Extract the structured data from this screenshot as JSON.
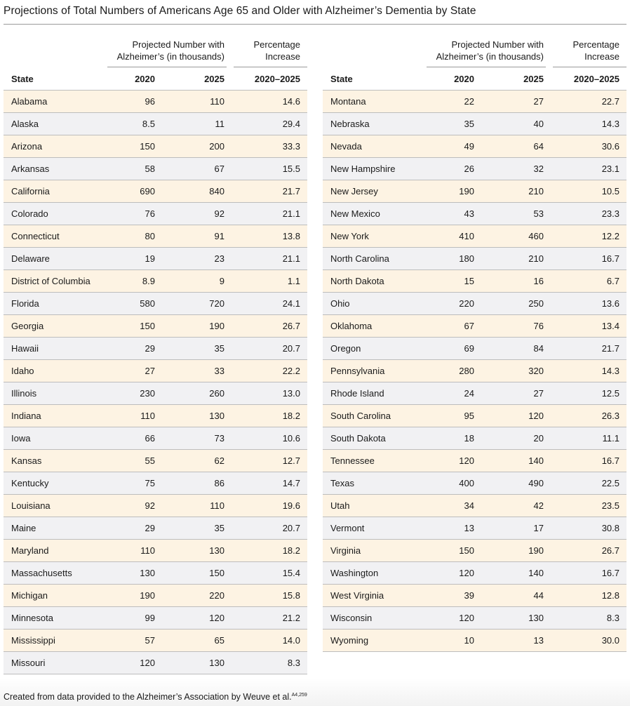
{
  "title": "Projections of Total Numbers of Americans Age 65 and Older with Alzheimer’s Dementia by State",
  "headers": {
    "projected_line1": "Projected Number with",
    "projected_line2": "Alzheimer’s (in thousands)",
    "percentage_line1": "Percentage",
    "percentage_line2": "Increase",
    "state": "State",
    "y2020": "2020",
    "y2025": "2025",
    "range": "2020–2025"
  },
  "left_rows": [
    {
      "state": "Alabama",
      "v2020": "96",
      "v2025": "110",
      "pct": "14.6"
    },
    {
      "state": "Alaska",
      "v2020": "8.5",
      "v2025": "11",
      "pct": "29.4"
    },
    {
      "state": "Arizona",
      "v2020": "150",
      "v2025": "200",
      "pct": "33.3"
    },
    {
      "state": "Arkansas",
      "v2020": "58",
      "v2025": "67",
      "pct": "15.5"
    },
    {
      "state": "California",
      "v2020": "690",
      "v2025": "840",
      "pct": "21.7"
    },
    {
      "state": "Colorado",
      "v2020": "76",
      "v2025": "92",
      "pct": "21.1"
    },
    {
      "state": "Connecticut",
      "v2020": "80",
      "v2025": "91",
      "pct": "13.8"
    },
    {
      "state": "Delaware",
      "v2020": "19",
      "v2025": "23",
      "pct": "21.1"
    },
    {
      "state": "District of Columbia",
      "v2020": "8.9",
      "v2025": "9",
      "pct": "1.1"
    },
    {
      "state": "Florida",
      "v2020": "580",
      "v2025": "720",
      "pct": "24.1"
    },
    {
      "state": "Georgia",
      "v2020": "150",
      "v2025": "190",
      "pct": "26.7"
    },
    {
      "state": "Hawaii",
      "v2020": "29",
      "v2025": "35",
      "pct": "20.7"
    },
    {
      "state": "Idaho",
      "v2020": "27",
      "v2025": "33",
      "pct": "22.2"
    },
    {
      "state": "Illinois",
      "v2020": "230",
      "v2025": "260",
      "pct": "13.0"
    },
    {
      "state": "Indiana",
      "v2020": "110",
      "v2025": "130",
      "pct": "18.2"
    },
    {
      "state": "Iowa",
      "v2020": "66",
      "v2025": "73",
      "pct": "10.6"
    },
    {
      "state": "Kansas",
      "v2020": "55",
      "v2025": "62",
      "pct": "12.7"
    },
    {
      "state": "Kentucky",
      "v2020": "75",
      "v2025": "86",
      "pct": "14.7"
    },
    {
      "state": "Louisiana",
      "v2020": "92",
      "v2025": "110",
      "pct": "19.6"
    },
    {
      "state": "Maine",
      "v2020": "29",
      "v2025": "35",
      "pct": "20.7"
    },
    {
      "state": "Maryland",
      "v2020": "110",
      "v2025": "130",
      "pct": "18.2"
    },
    {
      "state": "Massachusetts",
      "v2020": "130",
      "v2025": "150",
      "pct": "15.4"
    },
    {
      "state": "Michigan",
      "v2020": "190",
      "v2025": "220",
      "pct": "15.8"
    },
    {
      "state": "Minnesota",
      "v2020": "99",
      "v2025": "120",
      "pct": "21.2"
    },
    {
      "state": "Mississippi",
      "v2020": "57",
      "v2025": "65",
      "pct": "14.0"
    },
    {
      "state": "Missouri",
      "v2020": "120",
      "v2025": "130",
      "pct": "8.3"
    }
  ],
  "right_rows": [
    {
      "state": "Montana",
      "v2020": "22",
      "v2025": "27",
      "pct": "22.7"
    },
    {
      "state": "Nebraska",
      "v2020": "35",
      "v2025": "40",
      "pct": "14.3"
    },
    {
      "state": "Nevada",
      "v2020": "49",
      "v2025": "64",
      "pct": "30.6"
    },
    {
      "state": "New Hampshire",
      "v2020": "26",
      "v2025": "32",
      "pct": "23.1"
    },
    {
      "state": "New Jersey",
      "v2020": "190",
      "v2025": "210",
      "pct": "10.5"
    },
    {
      "state": "New Mexico",
      "v2020": "43",
      "v2025": "53",
      "pct": "23.3"
    },
    {
      "state": "New York",
      "v2020": "410",
      "v2025": "460",
      "pct": "12.2"
    },
    {
      "state": "North Carolina",
      "v2020": "180",
      "v2025": "210",
      "pct": "16.7"
    },
    {
      "state": "North Dakota",
      "v2020": "15",
      "v2025": "16",
      "pct": "6.7"
    },
    {
      "state": "Ohio",
      "v2020": "220",
      "v2025": "250",
      "pct": "13.6"
    },
    {
      "state": "Oklahoma",
      "v2020": "67",
      "v2025": "76",
      "pct": "13.4"
    },
    {
      "state": "Oregon",
      "v2020": "69",
      "v2025": "84",
      "pct": "21.7"
    },
    {
      "state": "Pennsylvania",
      "v2020": "280",
      "v2025": "320",
      "pct": "14.3"
    },
    {
      "state": "Rhode Island",
      "v2020": "24",
      "v2025": "27",
      "pct": "12.5"
    },
    {
      "state": "South Carolina",
      "v2020": "95",
      "v2025": "120",
      "pct": "26.3"
    },
    {
      "state": "South Dakota",
      "v2020": "18",
      "v2025": "20",
      "pct": "11.1"
    },
    {
      "state": "Tennessee",
      "v2020": "120",
      "v2025": "140",
      "pct": "16.7"
    },
    {
      "state": "Texas",
      "v2020": "400",
      "v2025": "490",
      "pct": "22.5"
    },
    {
      "state": "Utah",
      "v2020": "34",
      "v2025": "42",
      "pct": "23.5"
    },
    {
      "state": "Vermont",
      "v2020": "13",
      "v2025": "17",
      "pct": "30.8"
    },
    {
      "state": "Virginia",
      "v2020": "150",
      "v2025": "190",
      "pct": "26.7"
    },
    {
      "state": "Washington",
      "v2020": "120",
      "v2025": "140",
      "pct": "16.7"
    },
    {
      "state": "West Virginia",
      "v2020": "39",
      "v2025": "44",
      "pct": "12.8"
    },
    {
      "state": "Wisconsin",
      "v2020": "120",
      "v2025": "130",
      "pct": "8.3"
    },
    {
      "state": "Wyoming",
      "v2020": "10",
      "v2025": "13",
      "pct": "30.0"
    }
  ],
  "footnote": {
    "text": "Created from data provided to the Alzheimer’s Association by Weuve et al.",
    "superscript": "A4,259"
  },
  "colors": {
    "row_odd": "#fdf3e3",
    "row_even": "#f1f1f3",
    "rule": "#bdbdbd"
  }
}
